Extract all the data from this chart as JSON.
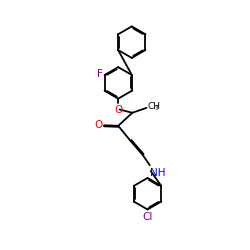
{
  "background_color": "#ffffff",
  "atom_colors": {
    "O": "#ff0000",
    "N": "#0000ff",
    "F": "#800080",
    "Cl": "#800080",
    "C": "#000000"
  },
  "bond_color": "#000000",
  "bond_width": 1.3,
  "figsize": [
    2.5,
    2.5
  ],
  "dpi": 100
}
